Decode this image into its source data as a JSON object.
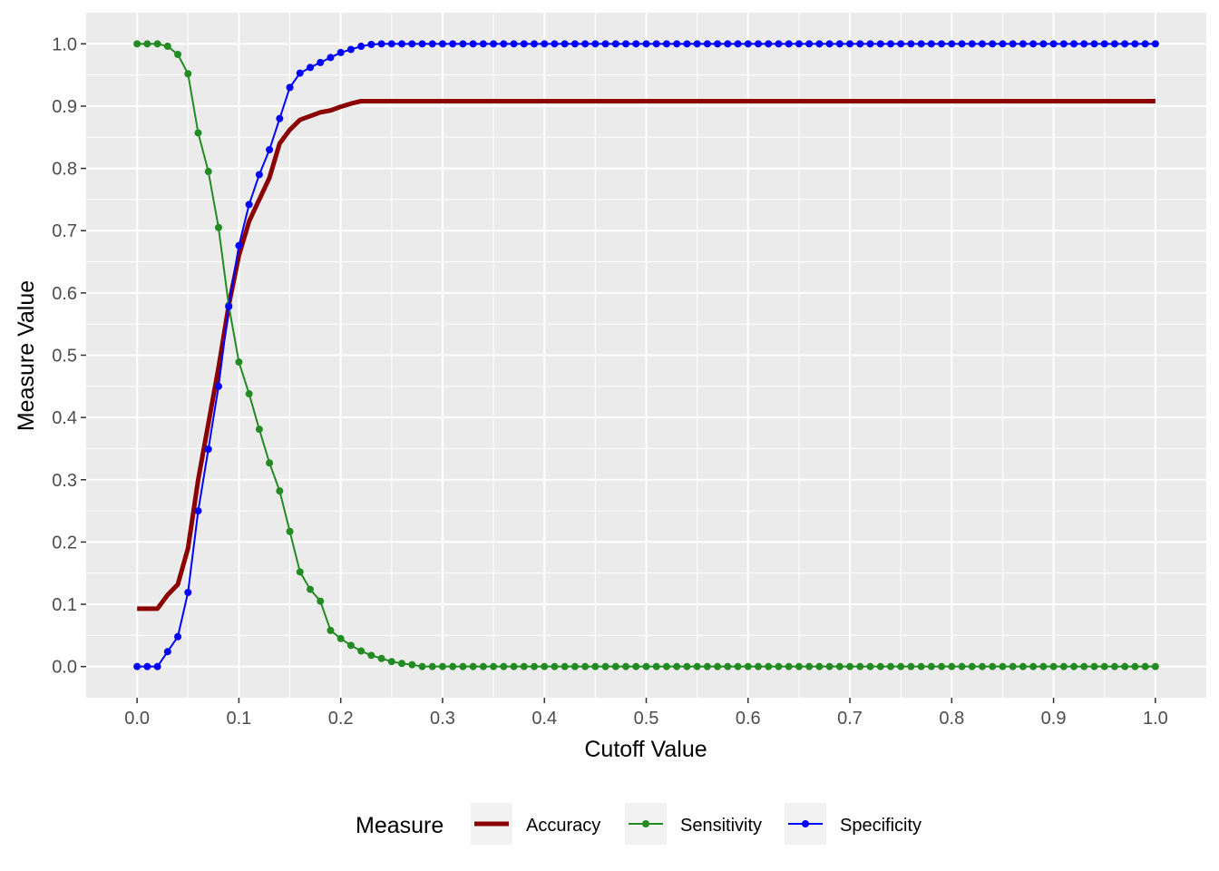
{
  "chart_data": {
    "type": "line",
    "title": "",
    "xlabel": "Cutoff Value",
    "ylabel": "Measure Value",
    "xlim": [
      -0.05,
      1.05
    ],
    "ylim": [
      -0.05,
      1.05
    ],
    "x_ticks": [
      "0.0",
      "0.1",
      "0.2",
      "0.3",
      "0.4",
      "0.5",
      "0.6",
      "0.7",
      "0.8",
      "0.9",
      "1.0"
    ],
    "y_ticks": [
      "0.0",
      "0.1",
      "0.2",
      "0.3",
      "0.4",
      "0.5",
      "0.6",
      "0.7",
      "0.8",
      "0.9",
      "1.0"
    ],
    "x_tick_values": [
      0,
      0.1,
      0.2,
      0.3,
      0.4,
      0.5,
      0.6,
      0.7,
      0.8,
      0.9,
      1.0
    ],
    "y_tick_values": [
      0,
      0.1,
      0.2,
      0.3,
      0.4,
      0.5,
      0.6,
      0.7,
      0.8,
      0.9,
      1.0
    ],
    "x_step": 0.01,
    "legend": {
      "title": "Measure",
      "position": "bottom",
      "entries": [
        "Accuracy",
        "Sensitivity",
        "Specificity"
      ]
    },
    "series": [
      {
        "name": "Accuracy",
        "color": "#8B0000",
        "style": "thick-line",
        "values": [
          0.093,
          0.093,
          0.093,
          0.115,
          0.132,
          0.19,
          0.3,
          0.39,
          0.48,
          0.58,
          0.66,
          0.715,
          0.75,
          0.785,
          0.84,
          0.862,
          0.878,
          0.884,
          0.89,
          0.893,
          0.899,
          0.904,
          0.908,
          0.908,
          0.908,
          0.908,
          0.908,
          0.908,
          0.908,
          0.908,
          0.908,
          0.908,
          0.908,
          0.908,
          0.908,
          0.908,
          0.908,
          0.908,
          0.908,
          0.908,
          0.908,
          0.908,
          0.908,
          0.908,
          0.908,
          0.908,
          0.908,
          0.908,
          0.908,
          0.908,
          0.908,
          0.908,
          0.908,
          0.908,
          0.908,
          0.908,
          0.908,
          0.908,
          0.908,
          0.908,
          0.908,
          0.908,
          0.908,
          0.908,
          0.908,
          0.908,
          0.908,
          0.908,
          0.908,
          0.908,
          0.908,
          0.908,
          0.908,
          0.908,
          0.908,
          0.908,
          0.908,
          0.908,
          0.908,
          0.908,
          0.908,
          0.908,
          0.908,
          0.908,
          0.908,
          0.908,
          0.908,
          0.908,
          0.908,
          0.908,
          0.908,
          0.908,
          0.908,
          0.908,
          0.908,
          0.908,
          0.908,
          0.908,
          0.908,
          0.908,
          0.908
        ]
      },
      {
        "name": "Sensitivity",
        "color": "#228B22",
        "style": "line-points",
        "values": [
          1.0,
          1.0,
          1.0,
          0.996,
          0.983,
          0.952,
          0.857,
          0.795,
          0.705,
          0.58,
          0.489,
          0.438,
          0.381,
          0.327,
          0.282,
          0.217,
          0.152,
          0.124,
          0.105,
          0.058,
          0.045,
          0.034,
          0.025,
          0.018,
          0.013,
          0.008,
          0.005,
          0.003,
          0,
          0,
          0,
          0,
          0,
          0,
          0,
          0,
          0,
          0,
          0,
          0,
          0,
          0,
          0,
          0,
          0,
          0,
          0,
          0,
          0,
          0,
          0,
          0,
          0,
          0,
          0,
          0,
          0,
          0,
          0,
          0,
          0,
          0,
          0,
          0,
          0,
          0,
          0,
          0,
          0,
          0,
          0,
          0,
          0,
          0,
          0,
          0,
          0,
          0,
          0,
          0,
          0,
          0,
          0,
          0,
          0,
          0,
          0,
          0,
          0,
          0,
          0,
          0,
          0,
          0,
          0,
          0,
          0,
          0,
          0,
          0,
          0
        ]
      },
      {
        "name": "Specificity",
        "color": "#0000FF",
        "style": "line-points",
        "values": [
          0,
          0,
          0,
          0.024,
          0.048,
          0.119,
          0.25,
          0.349,
          0.45,
          0.578,
          0.676,
          0.742,
          0.79,
          0.83,
          0.88,
          0.93,
          0.953,
          0.962,
          0.97,
          0.978,
          0.986,
          0.991,
          0.996,
          0.999,
          1.0,
          1.0,
          1.0,
          1.0,
          1.0,
          1.0,
          1.0,
          1.0,
          1.0,
          1.0,
          1.0,
          1.0,
          1.0,
          1.0,
          1.0,
          1.0,
          1.0,
          1.0,
          1.0,
          1.0,
          1.0,
          1.0,
          1.0,
          1.0,
          1.0,
          1.0,
          1.0,
          1.0,
          1.0,
          1.0,
          1.0,
          1.0,
          1.0,
          1.0,
          1.0,
          1.0,
          1.0,
          1.0,
          1.0,
          1.0,
          1.0,
          1.0,
          1.0,
          1.0,
          1.0,
          1.0,
          1.0,
          1.0,
          1.0,
          1.0,
          1.0,
          1.0,
          1.0,
          1.0,
          1.0,
          1.0,
          1.0,
          1.0,
          1.0,
          1.0,
          1.0,
          1.0,
          1.0,
          1.0,
          1.0,
          1.0,
          1.0,
          1.0,
          1.0,
          1.0,
          1.0,
          1.0,
          1.0,
          1.0,
          1.0,
          1.0,
          1.0
        ]
      }
    ]
  },
  "colors": {
    "panel_background": "#EBEBEB",
    "grid": "#FFFFFF",
    "tick_text": "#4D4D4D",
    "legend_key_background": "#F2F2F2"
  }
}
